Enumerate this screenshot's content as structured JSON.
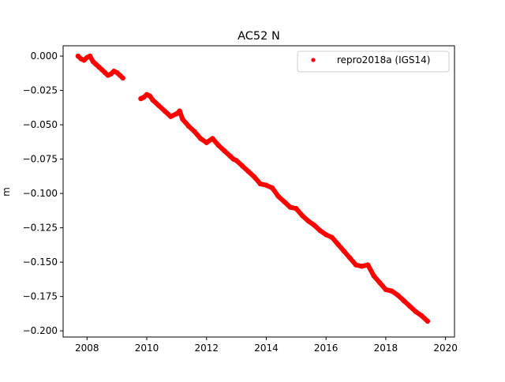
{
  "chart_data": {
    "type": "scatter",
    "title": "AC52 N",
    "xlabel": "",
    "ylabel": "m",
    "xlim": [
      2007.2,
      2020.3
    ],
    "ylim": [
      -0.2045,
      0.0075
    ],
    "x_ticks": [
      2008,
      2010,
      2012,
      2014,
      2016,
      2018,
      2020
    ],
    "x_tick_labels": [
      "2008",
      "2010",
      "2012",
      "2014",
      "2016",
      "2018",
      "2020"
    ],
    "y_ticks": [
      0.0,
      -0.025,
      -0.05,
      -0.075,
      -0.1,
      -0.125,
      -0.15,
      -0.175,
      -0.2
    ],
    "y_tick_labels": [
      "0.000",
      "−0.025",
      "−0.050",
      "−0.075",
      "−0.100",
      "−0.125",
      "−0.150",
      "−0.175",
      "−0.200"
    ],
    "grid": false,
    "legend": {
      "position": "top-right",
      "entries": [
        "repro2018a (IGS14)"
      ]
    },
    "series": [
      {
        "name": "repro2018a (IGS14)",
        "color": "#ff0000",
        "marker": "circle",
        "x": [
          2007.7,
          2007.8,
          2007.9,
          2008.0,
          2008.1,
          2008.2,
          2008.3,
          2008.4,
          2008.5,
          2008.6,
          2008.7,
          2008.8,
          2008.9,
          2009.0,
          2009.1,
          2009.2,
          2009.8,
          2009.9,
          2010.0,
          2010.1,
          2010.2,
          2010.4,
          2010.6,
          2010.8,
          2011.0,
          2011.1,
          2011.2,
          2011.4,
          2011.6,
          2011.8,
          2012.0,
          2012.2,
          2012.4,
          2012.6,
          2012.8,
          2012.9,
          2013.0,
          2013.2,
          2013.4,
          2013.6,
          2013.8,
          2014.0,
          2014.2,
          2014.4,
          2014.6,
          2014.8,
          2015.0,
          2015.2,
          2015.4,
          2015.6,
          2015.8,
          2016.0,
          2016.2,
          2016.4,
          2016.6,
          2016.8,
          2017.0,
          2017.2,
          2017.4,
          2017.6,
          2017.8,
          2018.0,
          2018.2,
          2018.4,
          2018.6,
          2018.8,
          2019.0,
          2019.2,
          2019.4
        ],
        "y": [
          0.0,
          -0.002,
          -0.003,
          -0.001,
          0.0,
          -0.004,
          -0.006,
          -0.008,
          -0.01,
          -0.012,
          -0.014,
          -0.013,
          -0.011,
          -0.012,
          -0.014,
          -0.016,
          -0.031,
          -0.03,
          -0.028,
          -0.029,
          -0.032,
          -0.036,
          -0.04,
          -0.044,
          -0.042,
          -0.04,
          -0.046,
          -0.051,
          -0.055,
          -0.06,
          -0.063,
          -0.06,
          -0.065,
          -0.069,
          -0.073,
          -0.075,
          -0.076,
          -0.08,
          -0.084,
          -0.088,
          -0.093,
          -0.094,
          -0.096,
          -0.102,
          -0.106,
          -0.11,
          -0.111,
          -0.116,
          -0.12,
          -0.123,
          -0.127,
          -0.13,
          -0.132,
          -0.137,
          -0.142,
          -0.147,
          -0.152,
          -0.153,
          -0.152,
          -0.16,
          -0.165,
          -0.17,
          -0.171,
          -0.174,
          -0.178,
          -0.182,
          -0.186,
          -0.189,
          -0.193
        ]
      }
    ]
  }
}
